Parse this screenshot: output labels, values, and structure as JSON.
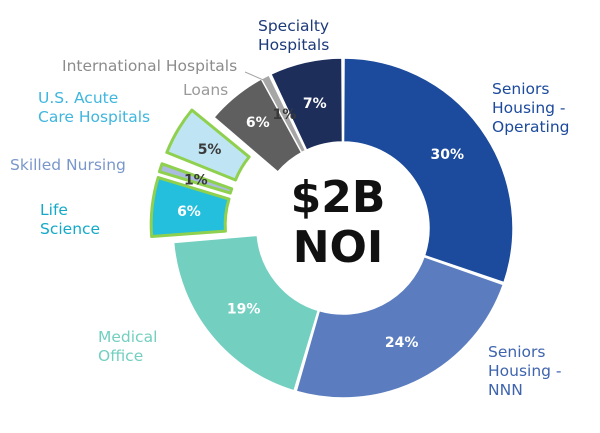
{
  "chart_data": {
    "type": "pie",
    "center_label": [
      "$2B",
      "NOI"
    ],
    "categories": [
      "Seniors Housing - Operating",
      "Seniors Housing - NNN",
      "Medical Office",
      "Life Science",
      "Skilled Nursing",
      "U.S. Acute Care Hospitals",
      "Loans",
      "International Hospitals",
      "Specialty Hospitals"
    ],
    "values": [
      30,
      24,
      19,
      6,
      1,
      5,
      6,
      1,
      7
    ],
    "value_labels": [
      "30%",
      "24%",
      "19%",
      "6%",
      "1%",
      "5%",
      "6%",
      "1%",
      "7%"
    ],
    "colors": [
      "#1C4A9C",
      "#5B7DC0",
      "#73CFC0",
      "#23BFDC",
      "#A9BCE0",
      "#BFE5F5",
      "#5F5F5F",
      "#A6A6A6",
      "#1D2E5B"
    ],
    "label_colors": [
      "#1C4A9C",
      "#3F64AE",
      "#73CFC0",
      "#14A9C9",
      "#7A97CB",
      "#3FB6DE",
      "#9A9A9A",
      "#8C8C8C",
      "#1D3A7A"
    ],
    "exploded": [
      false,
      false,
      false,
      true,
      true,
      true,
      false,
      false,
      false
    ],
    "highlight_color": "#8FD14F",
    "legend": "none"
  }
}
